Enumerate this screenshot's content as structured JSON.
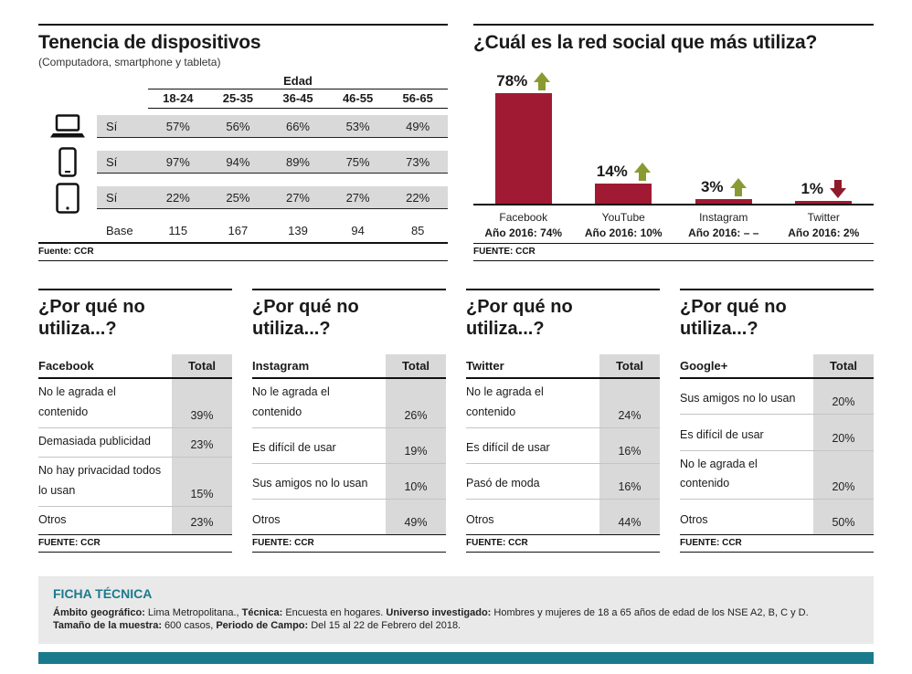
{
  "devices": {
    "title": "Tenencia de dispositivos",
    "subtitle": "(Computadora, smartphone y tableta)",
    "age_header": "Edad",
    "columns": [
      "18-24",
      "25-35",
      "36-45",
      "46-55",
      "56-65"
    ],
    "rows": [
      {
        "icon": "laptop-icon",
        "label": "Sí",
        "values": [
          "57%",
          "56%",
          "66%",
          "53%",
          "49%"
        ]
      },
      {
        "icon": "smartphone-icon",
        "label": "Sí",
        "values": [
          "97%",
          "94%",
          "89%",
          "75%",
          "73%"
        ]
      },
      {
        "icon": "tablet-icon",
        "label": "Sí",
        "values": [
          "22%",
          "25%",
          "27%",
          "27%",
          "22%"
        ]
      }
    ],
    "base_label": "Base",
    "base_values": [
      "115",
      "167",
      "139",
      "94",
      "85"
    ],
    "source": "Fuente: CCR"
  },
  "social": {
    "title": "¿Cuál es la red social que más utiliza?",
    "bars": [
      {
        "name": "Facebook",
        "value_label": "78%",
        "pct": 78,
        "trend": "up",
        "prev": "Año 2016: 74%"
      },
      {
        "name": "YouTube",
        "value_label": "14%",
        "pct": 14,
        "trend": "up",
        "prev": "Año 2016: 10%"
      },
      {
        "name": "Instagram",
        "value_label": "3%",
        "pct": 3,
        "trend": "up",
        "prev": "Año 2016: – –"
      },
      {
        "name": "Twitter",
        "value_label": "1%",
        "pct": 1,
        "trend": "down",
        "prev": "Año 2016: 2%"
      }
    ],
    "source": "FUENTE: CCR"
  },
  "why_not": [
    {
      "title_line1": "¿Por qué no",
      "title_line2": "utiliza...?",
      "platform": "Facebook",
      "total_label": "Total",
      "rows": [
        {
          "label": "No le agrada el contenido",
          "value": "39%"
        },
        {
          "label": "Demasiada publicidad",
          "value": "23%"
        },
        {
          "label": "No hay privacidad todos lo usan",
          "value": "15%"
        },
        {
          "label": "Otros",
          "value": "23%"
        }
      ],
      "source": "FUENTE: CCR"
    },
    {
      "title_line1": "¿Por qué no",
      "title_line2": "utiliza...?",
      "platform": "Instagram",
      "total_label": "Total",
      "rows": [
        {
          "label": "No le agrada el contenido",
          "value": "26%"
        },
        {
          "label": "Es difícil de usar",
          "value": "19%"
        },
        {
          "label": "Sus amigos no lo usan",
          "value": "10%"
        },
        {
          "label": "Otros",
          "value": "49%"
        }
      ],
      "source": "FUENTE: CCR"
    },
    {
      "title_line1": "¿Por qué no",
      "title_line2": "utiliza...?",
      "platform": "Twitter",
      "total_label": "Total",
      "rows": [
        {
          "label": "No le agrada el contenido",
          "value": "24%"
        },
        {
          "label": "Es difícil de usar",
          "value": "16%"
        },
        {
          "label": "Pasó de moda",
          "value": "16%"
        },
        {
          "label": "Otros",
          "value": "44%"
        }
      ],
      "source": "FUENTE: CCR"
    },
    {
      "title_line1": "¿Por qué no",
      "title_line2": "utiliza...?",
      "platform": "Google+",
      "total_label": "Total",
      "rows": [
        {
          "label": "Sus amigos no lo usan",
          "value": "20%"
        },
        {
          "label": "Es difícil de usar",
          "value": "20%"
        },
        {
          "label": "No le agrada el contenido",
          "value": "20%"
        },
        {
          "label": "Otros",
          "value": "50%"
        }
      ],
      "source": "FUENTE: CCR"
    }
  ],
  "ficha": {
    "title": "FICHA TÉCNICA",
    "line1": [
      {
        "b": "Ámbito geográfico:",
        "t": " Lima Metropolitana., "
      },
      {
        "b": "Técnica:",
        "t": " Encuesta en hogares. "
      },
      {
        "b": "Universo investigado:",
        "t": " Hombres y mujeres de 18 a 65 años de edad de los NSE A2, B, C y D."
      }
    ],
    "line2": [
      {
        "b": "Tamaño de la muestra:",
        "t": " 600 casos, "
      },
      {
        "b": "Periodo de Campo:",
        "t": " Del 15 al 22 de Febrero del 2018."
      }
    ]
  },
  "colors": {
    "bar": "#a01a33",
    "trend_up": "#8a9a33",
    "trend_down": "#8e1c2c",
    "teal_accent": "#1b7a8c",
    "shade": "#d9d9d9"
  },
  "chart_data": [
    {
      "type": "table",
      "title": "Tenencia de dispositivos (Computadora, smartphone y tableta)",
      "xlabel": "Edad",
      "columns": [
        "18-24",
        "25-35",
        "36-45",
        "46-55",
        "56-65"
      ],
      "series": [
        {
          "name": "Computadora (Sí)",
          "values": [
            57,
            56,
            66,
            53,
            49
          ]
        },
        {
          "name": "Smartphone (Sí)",
          "values": [
            97,
            94,
            89,
            75,
            73
          ]
        },
        {
          "name": "Tableta (Sí)",
          "values": [
            22,
            25,
            27,
            27,
            22
          ]
        },
        {
          "name": "Base",
          "values": [
            115,
            167,
            139,
            94,
            85
          ]
        }
      ],
      "unit": "%",
      "source": "CCR"
    },
    {
      "type": "bar",
      "title": "¿Cuál es la red social que más utiliza?",
      "categories": [
        "Facebook",
        "YouTube",
        "Instagram",
        "Twitter"
      ],
      "series": [
        {
          "name": "Actual",
          "values": [
            78,
            14,
            3,
            1
          ]
        },
        {
          "name": "Año 2016",
          "values": [
            74,
            10,
            null,
            2
          ]
        }
      ],
      "trend": [
        "up",
        "up",
        "up",
        "down"
      ],
      "ylim": [
        0,
        100
      ],
      "unit": "%",
      "grid": false,
      "source": "CCR"
    },
    {
      "type": "table",
      "title": "¿Por qué no utiliza...? — Facebook",
      "categories": [
        "No le agrada el contenido",
        "Demasiada publicidad",
        "No hay privacidad todos lo usan",
        "Otros"
      ],
      "values": [
        39,
        23,
        15,
        23
      ],
      "unit": "%",
      "source": "CCR"
    },
    {
      "type": "table",
      "title": "¿Por qué no utiliza...? — Instagram",
      "categories": [
        "No le agrada el contenido",
        "Es difícil de usar",
        "Sus amigos no lo usan",
        "Otros"
      ],
      "values": [
        26,
        19,
        10,
        49
      ],
      "unit": "%",
      "source": "CCR"
    },
    {
      "type": "table",
      "title": "¿Por qué no utiliza...? — Twitter",
      "categories": [
        "No le agrada el contenido",
        "Es difícil de usar",
        "Pasó de moda",
        "Otros"
      ],
      "values": [
        24,
        16,
        16,
        44
      ],
      "unit": "%",
      "source": "CCR"
    },
    {
      "type": "table",
      "title": "¿Por qué no utiliza...? — Google+",
      "categories": [
        "Sus amigos no lo usan",
        "Es difícil de usar",
        "No le agrada el contenido",
        "Otros"
      ],
      "values": [
        20,
        20,
        20,
        50
      ],
      "unit": "%",
      "source": "CCR"
    }
  ]
}
